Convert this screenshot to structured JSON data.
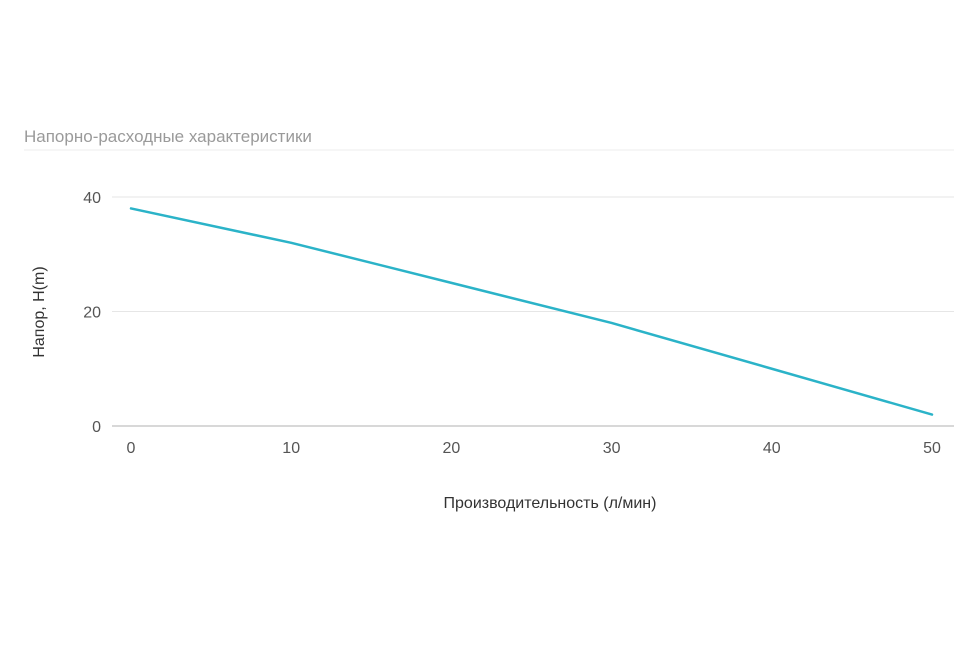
{
  "chart_data": {
    "type": "line",
    "title": "Напорно-расходные характеристики",
    "xlabel": "Производительность (л/мин)",
    "ylabel": "Напор, H(m)",
    "x": [
      0,
      10,
      20,
      30,
      40,
      50
    ],
    "series": [
      {
        "values": [
          38,
          32,
          25,
          18,
          10,
          2
        ]
      }
    ],
    "xlim": [
      0,
      50
    ],
    "ylim": [
      0,
      40
    ],
    "xticks": [
      "0",
      "10",
      "20",
      "30",
      "40",
      "50"
    ],
    "yticks": [
      "0",
      "20",
      "40"
    ],
    "grid": true,
    "legend": "none",
    "colors": {
      "line": "#2bb3c8",
      "grid": "#e6e6e6",
      "baseline": "#cccccc",
      "title": "#9a9a9a"
    }
  }
}
